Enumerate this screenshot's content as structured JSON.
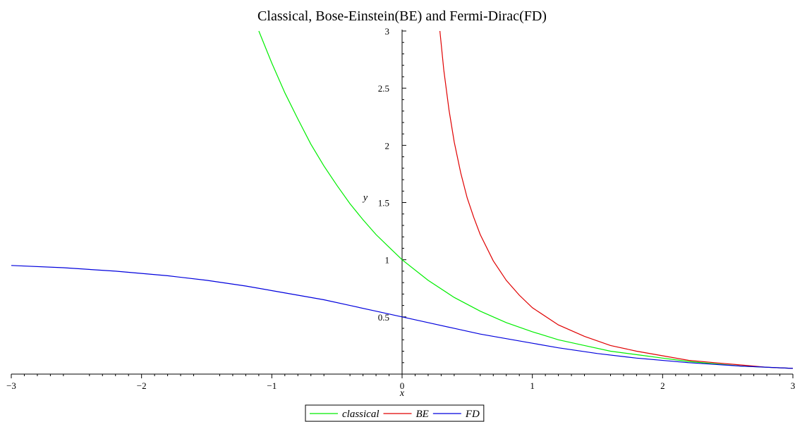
{
  "chart_data": {
    "type": "line",
    "title": "Classical, Bose-Einstein(BE) and Fermi-Dirac(FD)",
    "xlabel": "x",
    "ylabel": "y",
    "xlim": [
      -3,
      3
    ],
    "ylim": [
      0,
      3
    ],
    "x_ticks": [
      -3,
      -2,
      -1,
      0,
      1,
      2,
      3
    ],
    "x_tick_labels": [
      "−3",
      "−2",
      "−1",
      "0",
      "1",
      "2",
      "3"
    ],
    "y_ticks": [
      0.5,
      1,
      1.5,
      2,
      2.5,
      3
    ],
    "y_tick_labels": [
      "0.5",
      "1",
      "1.5",
      "2",
      "2.5",
      "3"
    ],
    "grid": false,
    "legend_position": "bottom-center",
    "series": [
      {
        "name": "classical",
        "color": "#00ee00",
        "x": [
          -1.1,
          -1.0,
          -0.9,
          -0.8,
          -0.7,
          -0.6,
          -0.5,
          -0.4,
          -0.3,
          -0.2,
          -0.1,
          0.0,
          0.2,
          0.4,
          0.6,
          0.8,
          1.0,
          1.2,
          1.4,
          1.6,
          1.8,
          2.0,
          2.2,
          2.4,
          2.6,
          2.8,
          3.0
        ],
        "y": [
          3.0,
          2.72,
          2.46,
          2.23,
          2.01,
          1.82,
          1.65,
          1.49,
          1.35,
          1.22,
          1.11,
          1.0,
          0.82,
          0.67,
          0.55,
          0.45,
          0.37,
          0.3,
          0.25,
          0.2,
          0.17,
          0.14,
          0.11,
          0.09,
          0.07,
          0.06,
          0.05
        ]
      },
      {
        "name": "BE",
        "color": "#e00000",
        "x": [
          0.29,
          0.32,
          0.36,
          0.4,
          0.45,
          0.5,
          0.55,
          0.6,
          0.7,
          0.8,
          0.9,
          1.0,
          1.2,
          1.4,
          1.6,
          1.8,
          2.0,
          2.2,
          2.4,
          2.6,
          2.8,
          3.0
        ],
        "y": [
          3.0,
          2.66,
          2.31,
          2.03,
          1.76,
          1.54,
          1.37,
          1.22,
          0.99,
          0.82,
          0.69,
          0.58,
          0.43,
          0.33,
          0.25,
          0.2,
          0.16,
          0.12,
          0.1,
          0.08,
          0.06,
          0.05
        ]
      },
      {
        "name": "FD",
        "color": "#0000dd",
        "x": [
          -3.0,
          -2.6,
          -2.2,
          -1.8,
          -1.5,
          -1.2,
          -1.0,
          -0.8,
          -0.6,
          -0.4,
          -0.2,
          0.0,
          0.2,
          0.4,
          0.6,
          0.8,
          1.0,
          1.2,
          1.5,
          1.8,
          2.2,
          2.6,
          3.0
        ],
        "y": [
          0.95,
          0.93,
          0.9,
          0.86,
          0.82,
          0.77,
          0.73,
          0.69,
          0.65,
          0.6,
          0.55,
          0.5,
          0.45,
          0.4,
          0.35,
          0.31,
          0.27,
          0.23,
          0.18,
          0.14,
          0.1,
          0.07,
          0.05
        ]
      }
    ]
  }
}
